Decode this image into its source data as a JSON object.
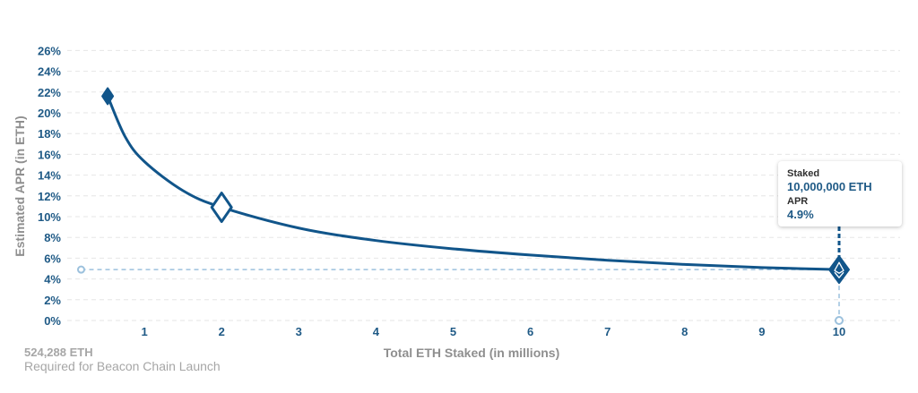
{
  "chart_data": {
    "type": "line",
    "xlabel": "Total ETH Staked  (in millions)",
    "ylabel": "Estimated APR (in ETH)",
    "xlim": [
      0,
      10.8
    ],
    "ylim": [
      0,
      26
    ],
    "x_ticks": [
      1,
      2,
      3,
      4,
      5,
      6,
      7,
      8,
      9,
      10
    ],
    "y_ticks": [
      0,
      2,
      4,
      6,
      8,
      10,
      12,
      14,
      16,
      18,
      20,
      22,
      24,
      26
    ],
    "y_tick_labels": [
      "0%",
      "2%",
      "4%",
      "6%",
      "8%",
      "10%",
      "12%",
      "14%",
      "16%",
      "18%",
      "20%",
      "22%",
      "24%",
      "26%"
    ],
    "grid": "horizontal dashed",
    "series": [
      {
        "x": [
          0.524,
          0.75,
          1,
          1.5,
          2,
          3,
          4,
          5,
          6,
          7,
          8,
          9,
          10
        ],
        "values": [
          21.6,
          17.7,
          15.3,
          12.5,
          10.9,
          8.9,
          7.7,
          6.9,
          6.3,
          5.8,
          5.4,
          5.1,
          4.9
        ]
      }
    ],
    "markers": [
      {
        "x": 0.524,
        "y": 21.6,
        "shape": "filled-diamond"
      },
      {
        "x": 2,
        "y": 10.9,
        "shape": "hollow-diamond"
      },
      {
        "x": 10,
        "y": 4.9,
        "shape": "eth-diamond"
      }
    ],
    "reference_line": {
      "y": 4.9,
      "x_from": 0.18,
      "x_to": 10
    },
    "tooltip": {
      "staked_label": "Staked",
      "staked_value": "10,000,000 ETH",
      "apr_label": "APR",
      "apr_value": "4.9%"
    }
  },
  "footnote": {
    "title": "524,288 ETH",
    "subtitle": "Required for Beacon Chain Launch"
  },
  "colors": {
    "line": "#11558a",
    "accent": "#1f5a86",
    "reference": "#9cc1dd",
    "grid": "#e6e6e6",
    "axis_title": "#8f8f8f"
  }
}
